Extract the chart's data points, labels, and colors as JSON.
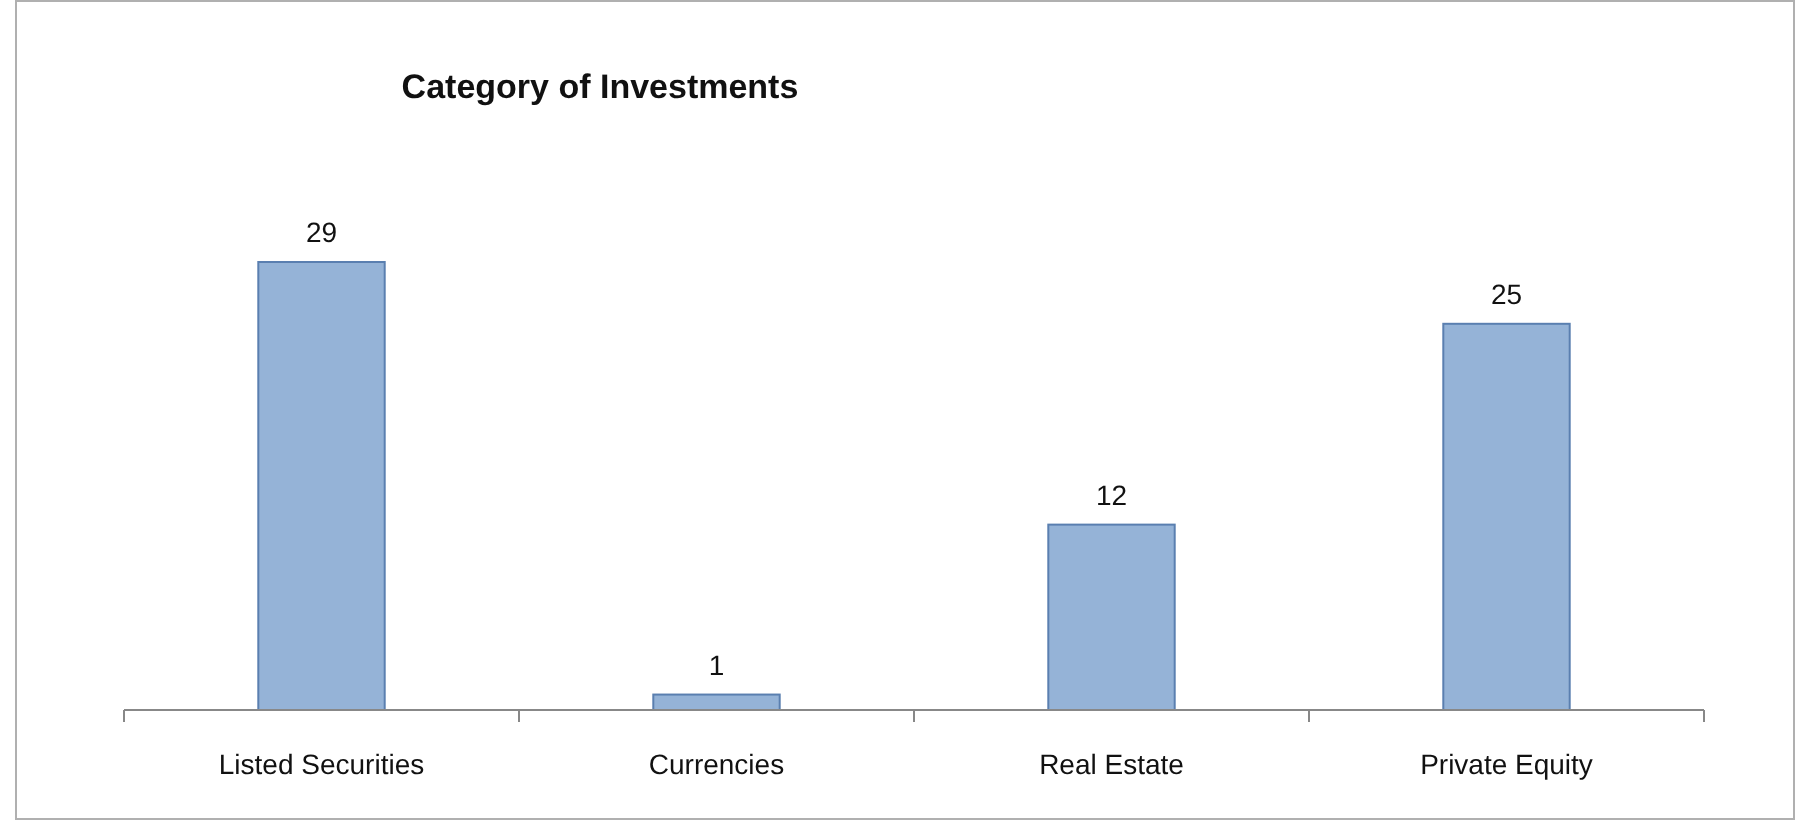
{
  "chart_data": {
    "type": "bar",
    "title": "Category of Investments",
    "categories": [
      "Listed Securities",
      "Currencies",
      "Real Estate",
      "Private Equity"
    ],
    "values": [
      29,
      1,
      12,
      25
    ],
    "color": "#95b3d7",
    "data_labels": true
  }
}
